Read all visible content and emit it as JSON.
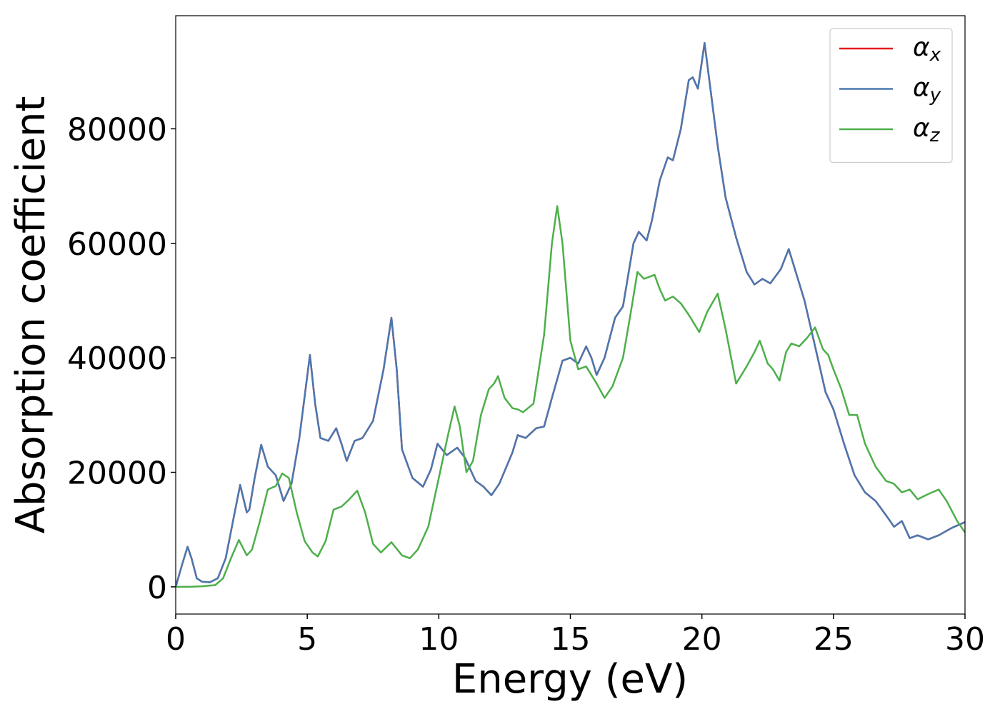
{
  "chart_data": {
    "type": "line",
    "x_label": "Energy (eV)",
    "y_label": "Absorption coefficient",
    "xlim": [
      0,
      30
    ],
    "ylim": [
      -4750,
      99750
    ],
    "xticks": [
      0,
      5,
      10,
      15,
      20,
      25,
      30
    ],
    "yticks": [
      0,
      20000,
      40000,
      60000,
      80000
    ],
    "grid": false,
    "legend": "upper right",
    "series": [
      {
        "name": "αx",
        "color": "#e41a1c",
        "x": [
          0,
          0.25,
          0.45,
          0.6,
          0.8,
          1.0,
          1.3,
          1.6,
          1.9,
          2.2,
          2.45,
          2.7,
          2.8,
          3.0,
          3.25,
          3.5,
          3.8,
          4.1,
          4.4,
          4.7,
          4.95,
          5.1,
          5.3,
          5.5,
          5.8,
          6.1,
          6.3,
          6.5,
          6.8,
          7.1,
          7.5,
          7.9,
          8.2,
          8.4,
          8.6,
          9.0,
          9.4,
          9.7,
          9.95,
          10.3,
          10.7,
          11.0,
          11.4,
          11.7,
          12.0,
          12.3,
          12.8,
          13.0,
          13.3,
          13.7,
          14.0,
          14.3,
          14.7,
          15.0,
          15.3,
          15.6,
          15.8,
          16.0,
          16.3,
          16.7,
          17.0,
          17.4,
          17.6,
          17.9,
          18.1,
          18.4,
          18.7,
          18.9,
          19.2,
          19.5,
          19.65,
          19.85,
          20.1,
          20.35,
          20.6,
          20.9,
          21.3,
          21.7,
          22.0,
          22.3,
          22.6,
          23.0,
          23.3,
          23.5,
          23.9,
          24.3,
          24.7,
          25.0,
          25.4,
          25.8,
          26.2,
          26.6,
          27.0,
          27.3,
          27.6,
          27.9,
          28.2,
          28.6,
          29.0,
          29.5,
          30.0
        ],
        "values": [
          0,
          4000,
          7000,
          5000,
          1500,
          900,
          800,
          1500,
          5000,
          12000,
          17800,
          13000,
          13500,
          19000,
          24800,
          21000,
          19500,
          15000,
          18000,
          26000,
          35000,
          40500,
          32000,
          26000,
          25500,
          27700,
          25000,
          22000,
          25500,
          26000,
          29000,
          38000,
          47000,
          38000,
          24000,
          19000,
          17500,
          20500,
          25000,
          23000,
          24300,
          22500,
          18500,
          17500,
          16000,
          18000,
          23500,
          26500,
          26000,
          27700,
          28000,
          33000,
          39500,
          40000,
          39000,
          42000,
          40000,
          37000,
          40000,
          47000,
          49000,
          60000,
          62000,
          60500,
          64000,
          71000,
          75000,
          74500,
          80000,
          88500,
          89000,
          87000,
          95000,
          86000,
          77000,
          68000,
          61000,
          55000,
          52800,
          53800,
          53000,
          55500,
          59000,
          56000,
          50000,
          42000,
          34000,
          31000,
          25000,
          19500,
          16500,
          15000,
          12500,
          10500,
          11500,
          8500,
          9000,
          8300,
          9000,
          10300,
          11300
        ]
      },
      {
        "name": "αy",
        "color": "#4a78b0",
        "x": [
          0,
          0.25,
          0.45,
          0.6,
          0.8,
          1.0,
          1.3,
          1.6,
          1.9,
          2.2,
          2.45,
          2.7,
          2.8,
          3.0,
          3.25,
          3.5,
          3.8,
          4.1,
          4.4,
          4.7,
          4.95,
          5.1,
          5.3,
          5.5,
          5.8,
          6.1,
          6.3,
          6.5,
          6.8,
          7.1,
          7.5,
          7.9,
          8.2,
          8.4,
          8.6,
          9.0,
          9.4,
          9.7,
          9.95,
          10.3,
          10.7,
          11.0,
          11.4,
          11.7,
          12.0,
          12.3,
          12.8,
          13.0,
          13.3,
          13.7,
          14.0,
          14.3,
          14.7,
          15.0,
          15.3,
          15.6,
          15.8,
          16.0,
          16.3,
          16.7,
          17.0,
          17.4,
          17.6,
          17.9,
          18.1,
          18.4,
          18.7,
          18.9,
          19.2,
          19.5,
          19.65,
          19.85,
          20.1,
          20.35,
          20.6,
          20.9,
          21.3,
          21.7,
          22.0,
          22.3,
          22.6,
          23.0,
          23.3,
          23.5,
          23.9,
          24.3,
          24.7,
          25.0,
          25.4,
          25.8,
          26.2,
          26.6,
          27.0,
          27.3,
          27.6,
          27.9,
          28.2,
          28.6,
          29.0,
          29.5,
          30.0
        ],
        "values": [
          0,
          4000,
          7000,
          5000,
          1500,
          900,
          800,
          1500,
          5000,
          12000,
          17800,
          13000,
          13500,
          19000,
          24800,
          21000,
          19500,
          15000,
          18000,
          26000,
          35000,
          40500,
          32000,
          26000,
          25500,
          27700,
          25000,
          22000,
          25500,
          26000,
          29000,
          38000,
          47000,
          38000,
          24000,
          19000,
          17500,
          20500,
          25000,
          23000,
          24300,
          22500,
          18500,
          17500,
          16000,
          18000,
          23500,
          26500,
          26000,
          27700,
          28000,
          33000,
          39500,
          40000,
          39000,
          42000,
          40000,
          37000,
          40000,
          47000,
          49000,
          60000,
          62000,
          60500,
          64000,
          71000,
          75000,
          74500,
          80000,
          88500,
          89000,
          87000,
          95000,
          86000,
          77000,
          68000,
          61000,
          55000,
          52800,
          53800,
          53000,
          55500,
          59000,
          56000,
          50000,
          42000,
          34000,
          31000,
          25000,
          19500,
          16500,
          15000,
          12500,
          10500,
          11500,
          8500,
          9000,
          8300,
          9000,
          10300,
          11300
        ]
      },
      {
        "name": "αz",
        "color": "#4daf4a",
        "x": [
          0,
          0.5,
          1.0,
          1.5,
          1.8,
          2.1,
          2.4,
          2.7,
          2.9,
          3.2,
          3.5,
          3.8,
          4.05,
          4.3,
          4.6,
          4.9,
          5.2,
          5.4,
          5.7,
          6.0,
          6.3,
          6.6,
          6.9,
          7.2,
          7.5,
          7.8,
          8.2,
          8.6,
          8.9,
          9.2,
          9.6,
          10.0,
          10.35,
          10.6,
          10.8,
          11.05,
          11.3,
          11.6,
          11.9,
          12.1,
          12.25,
          12.5,
          12.8,
          13.0,
          13.2,
          13.6,
          14.0,
          14.3,
          14.5,
          14.7,
          15.0,
          15.3,
          15.6,
          16.0,
          16.3,
          16.6,
          17.0,
          17.3,
          17.55,
          17.8,
          18.2,
          18.4,
          18.6,
          18.9,
          19.2,
          19.5,
          19.9,
          20.2,
          20.6,
          20.9,
          21.3,
          21.7,
          22.0,
          22.2,
          22.5,
          22.7,
          22.95,
          23.2,
          23.4,
          23.7,
          24.0,
          24.3,
          24.6,
          24.8,
          25.0,
          25.3,
          25.6,
          25.9,
          26.2,
          26.6,
          27.0,
          27.3,
          27.6,
          27.9,
          28.2,
          28.6,
          29.0,
          29.3,
          29.7,
          30.0
        ],
        "values": [
          0,
          0,
          100,
          300,
          1500,
          5000,
          8200,
          5500,
          6500,
          11500,
          17000,
          17600,
          19800,
          19000,
          13000,
          8000,
          6000,
          5300,
          8000,
          13500,
          14000,
          15300,
          16800,
          13000,
          7500,
          6000,
          7800,
          5500,
          5000,
          6500,
          10500,
          19000,
          26500,
          31500,
          28000,
          20000,
          22000,
          30000,
          34500,
          35500,
          36800,
          33000,
          31200,
          31000,
          30500,
          32000,
          44000,
          60000,
          66500,
          60000,
          43000,
          38000,
          38500,
          35500,
          33000,
          35000,
          40000,
          48000,
          55000,
          53800,
          54500,
          52000,
          50000,
          50700,
          49500,
          47500,
          44500,
          48000,
          51200,
          45000,
          35500,
          38500,
          41000,
          43000,
          39000,
          38000,
          36000,
          41000,
          42500,
          42000,
          43500,
          45300,
          41500,
          40500,
          38000,
          34500,
          30000,
          30000,
          25000,
          21000,
          18500,
          18000,
          16500,
          17000,
          15300,
          16200,
          17000,
          15000,
          11500,
          9500
        ]
      }
    ]
  }
}
